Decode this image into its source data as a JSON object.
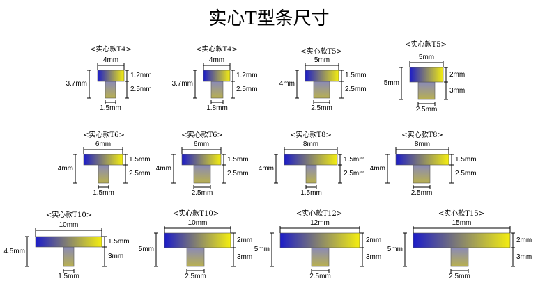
{
  "title": "实心T型条尺寸",
  "colors": {
    "left": "#1c1cc8",
    "right": "#f4ee10",
    "stem_top": "#8a8ab8",
    "stem_bottom": "#b8b050",
    "line": "#000000"
  },
  "profiles": [
    {
      "name": "<实心款T4>",
      "width": "4mm",
      "cap": "1.2mm",
      "stem_height": "2.5mm",
      "total_height": "3.7mm",
      "stem_width": "1.5mm"
    },
    {
      "name": "<实心款T4>",
      "width": "4mm",
      "cap": "1.2mm",
      "stem_height": "2.5mm",
      "total_height": "3.7mm",
      "stem_width": "1.8mm"
    },
    {
      "name": "<实心款T5>",
      "width": "5mm",
      "cap": "1.5mm",
      "stem_height": "2.5mm",
      "total_height": "4mm",
      "stem_width": "2.5mm"
    },
    {
      "name": "<实心款T5>",
      "width": "5mm",
      "cap": "2mm",
      "stem_height": "3mm",
      "total_height": "5mm",
      "stem_width": "2.5mm"
    },
    {
      "name": "<实心款T6>",
      "width": "6mm",
      "cap": "1.5mm",
      "stem_height": "2.5mm",
      "total_height": "4mm",
      "stem_width": "1.5mm"
    },
    {
      "name": "<实心款T6>",
      "width": "6mm",
      "cap": "1.5mm",
      "stem_height": "2.5mm",
      "total_height": "4mm",
      "stem_width": "2.5mm"
    },
    {
      "name": "<实心款T8>",
      "width": "8mm",
      "cap": "1.5mm",
      "stem_height": "2.5mm",
      "total_height": "4mm",
      "stem_width": "1.5mm"
    },
    {
      "name": "<实心款T8>",
      "width": "8mm",
      "cap": "1.5mm",
      "stem_height": "2.5mm",
      "total_height": "4mm",
      "stem_width": "2.5mm"
    },
    {
      "name": "<实心款T10>",
      "width": "10mm",
      "cap": "1.5mm",
      "stem_height": "3mm",
      "total_height": "4.5mm",
      "stem_width": "1.5mm"
    },
    {
      "name": "<实心款T10>",
      "width": "10mm",
      "cap": "2mm",
      "stem_height": "3mm",
      "total_height": "5mm",
      "stem_width": "2.5mm"
    },
    {
      "name": "<实心款T12>",
      "width": "12mm",
      "cap": "2mm",
      "stem_height": "3mm",
      "total_height": "5mm",
      "stem_width": "2.5mm"
    },
    {
      "name": "<实心款T15>",
      "width": "15mm",
      "cap": "2mm",
      "stem_height": "3mm",
      "total_height": "5mm",
      "stem_width": "2.5mm"
    }
  ]
}
